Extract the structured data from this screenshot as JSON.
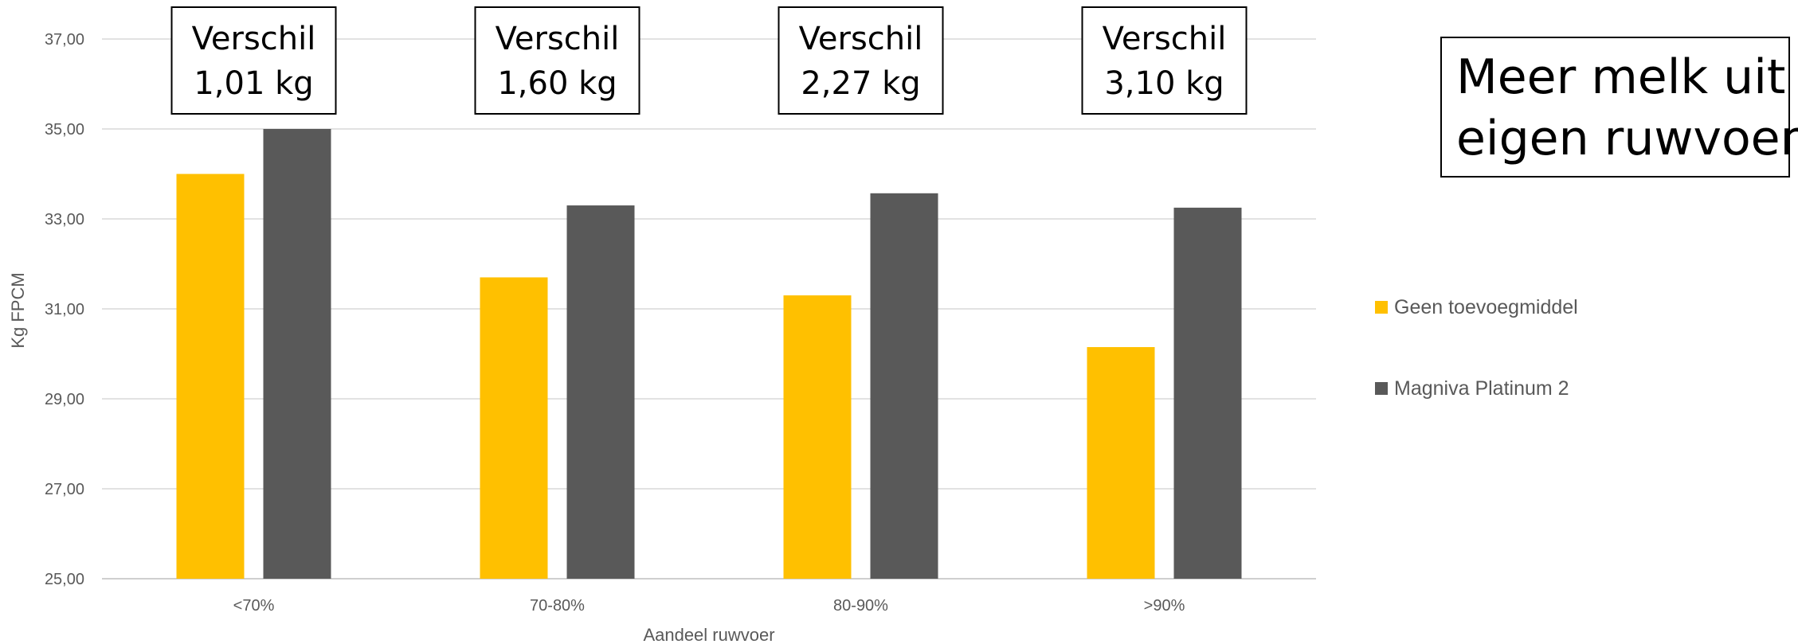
{
  "chart_data": {
    "type": "bar",
    "categories": [
      "<70%",
      "70-80%",
      "80-90%",
      ">90%"
    ],
    "series": [
      {
        "name": "Geen toevoegmiddel",
        "values": [
          34.0,
          31.7,
          31.3,
          30.15
        ],
        "color": "#FFC000"
      },
      {
        "name": "Magniva Platinum 2",
        "values": [
          35.0,
          33.3,
          33.57,
          33.25
        ],
        "color": "#595959"
      }
    ],
    "xlabel": "Aandeel ruwvoer",
    "ylabel": "Kg FPCM",
    "ylim": [
      25,
      37
    ],
    "yticks": [
      "25,00",
      "27,00",
      "29,00",
      "31,00",
      "33,00",
      "35,00",
      "37,00"
    ],
    "grid": true,
    "legend_position": "right",
    "annotations": [
      {
        "line1": "Verschil",
        "line2": "1,01 kg"
      },
      {
        "line1": "Verschil",
        "line2": "1,60 kg"
      },
      {
        "line1": "Verschil",
        "line2": "2,27 kg"
      },
      {
        "line1": "Verschil",
        "line2": "3,10 kg"
      }
    ],
    "headline": {
      "line1": "Meer melk uit",
      "line2": "eigen ruwvoer!"
    }
  }
}
